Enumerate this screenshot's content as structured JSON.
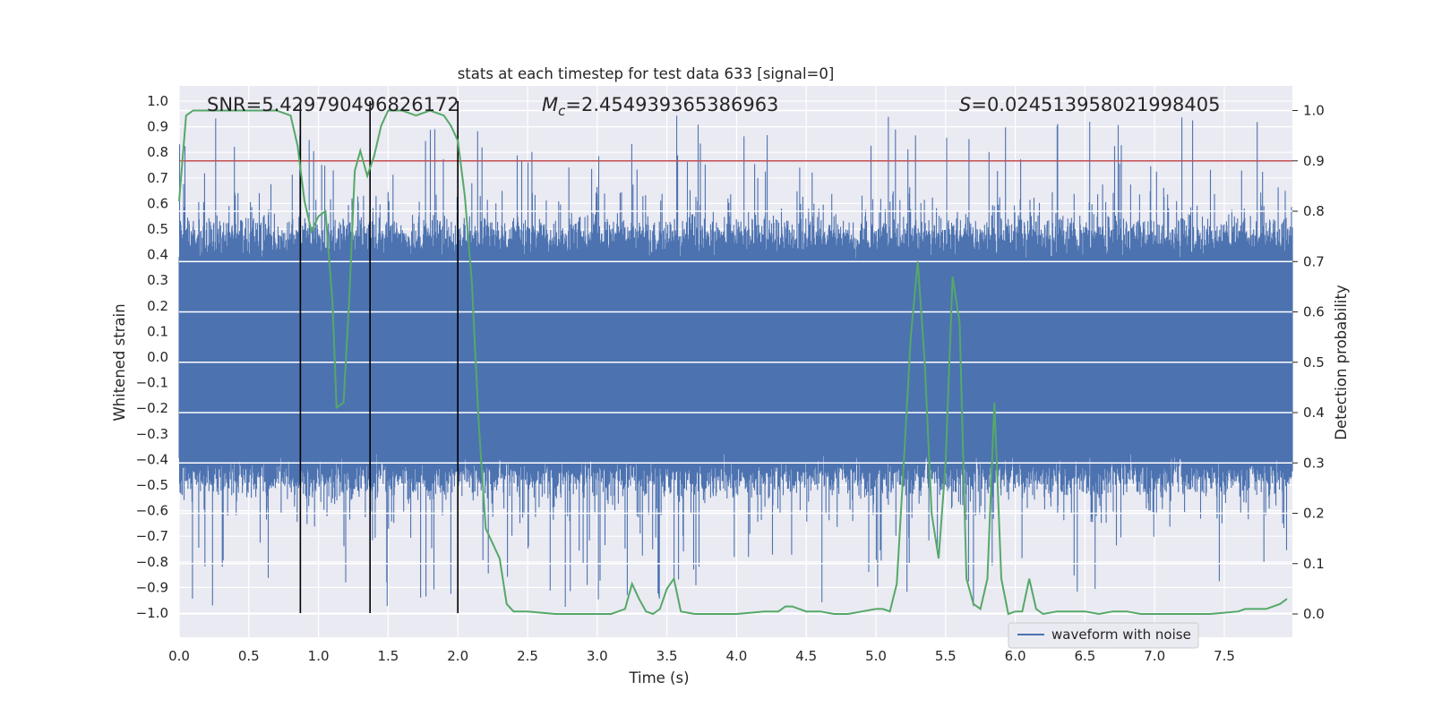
{
  "chart_data": {
    "type": "line",
    "title": "stats at each timestep for test data 633 [signal=0]",
    "xlabel": "Time (s)",
    "ylabel_left": "Whitened strain",
    "ylabel_right": "Detection probability",
    "xlim": [
      0.0,
      8.0
    ],
    "ylim_left": [
      -1.1,
      1.05
    ],
    "ylim_right": [
      -0.05,
      1.03
    ],
    "x_ticks": [
      "0.0",
      "0.5",
      "1.0",
      "1.5",
      "2.0",
      "2.5",
      "3.0",
      "3.5",
      "4.0",
      "4.5",
      "5.0",
      "5.5",
      "6.0",
      "6.5",
      "7.0",
      "7.5"
    ],
    "y_ticks_left": [
      "1.0",
      "0.9",
      "0.8",
      "0.7",
      "0.6",
      "0.5",
      "0.4",
      "0.3",
      "0.2",
      "0.1",
      "0.0",
      "−0.1",
      "−0.2",
      "−0.3",
      "−0.4",
      "−0.5",
      "−0.6",
      "−0.7",
      "−0.8",
      "−0.9",
      "−1.0"
    ],
    "y_ticks_right": [
      "1.0",
      "0.9",
      "0.8",
      "0.7",
      "0.6",
      "0.5",
      "0.4",
      "0.3",
      "0.2",
      "0.1",
      "0.0"
    ],
    "grid": true,
    "annotations": {
      "snr": "SNR=5.429790496826172",
      "mc_symbol": "M",
      "mc_sub": "c",
      "mc_value": "=2.454939365386963",
      "s_symbol": "S",
      "s_value": "=0.024513958021998405"
    },
    "threshold": {
      "value": 0.9,
      "axis": "right",
      "color": "#c44e52"
    },
    "vertical_lines": {
      "x": [
        0.87,
        1.37,
        2.0
      ],
      "y_range_left": [
        -1.0,
        1.0
      ],
      "color": "#000000"
    },
    "legend": {
      "location": "lower-right",
      "entries": [
        "waveform with noise"
      ]
    },
    "series": [
      {
        "name": "waveform with noise",
        "axis": "left",
        "color": "#4c72b0",
        "description": "dense noisy strain, roughly uniform amplitude"
      },
      {
        "name": "detection probability",
        "axis": "right",
        "color": "#55a868",
        "x": [
          0.0,
          0.05,
          0.1,
          0.2,
          0.3,
          0.5,
          0.7,
          0.8,
          0.85,
          0.9,
          0.95,
          1.0,
          1.05,
          1.1,
          1.13,
          1.18,
          1.22,
          1.26,
          1.3,
          1.35,
          1.4,
          1.45,
          1.5,
          1.6,
          1.7,
          1.8,
          1.9,
          1.95,
          2.0,
          2.05,
          2.1,
          2.15,
          2.2,
          2.3,
          2.35,
          2.4,
          2.5,
          2.7,
          2.9,
          3.1,
          3.2,
          3.25,
          3.3,
          3.35,
          3.4,
          3.45,
          3.5,
          3.55,
          3.6,
          3.7,
          3.8,
          3.9,
          4.0,
          4.2,
          4.3,
          4.35,
          4.4,
          4.5,
          4.6,
          4.7,
          4.8,
          4.9,
          5.0,
          5.05,
          5.1,
          5.15,
          5.2,
          5.25,
          5.3,
          5.35,
          5.4,
          5.45,
          5.5,
          5.55,
          5.6,
          5.65,
          5.7,
          5.75,
          5.8,
          5.85,
          5.9,
          5.95,
          6.0,
          6.05,
          6.1,
          6.15,
          6.2,
          6.3,
          6.4,
          6.5,
          6.6,
          6.7,
          6.8,
          6.9,
          7.0,
          7.2,
          7.4,
          7.6,
          7.65,
          7.7,
          7.8,
          7.9,
          7.95
        ],
        "values": [
          0.82,
          0.99,
          1.0,
          1.0,
          1.0,
          1.0,
          1.0,
          0.99,
          0.93,
          0.82,
          0.76,
          0.79,
          0.8,
          0.62,
          0.41,
          0.42,
          0.62,
          0.88,
          0.92,
          0.87,
          0.91,
          0.97,
          1.0,
          1.0,
          0.99,
          1.0,
          0.99,
          0.97,
          0.94,
          0.83,
          0.66,
          0.38,
          0.17,
          0.11,
          0.02,
          0.005,
          0.005,
          0.0,
          0.0,
          0.0,
          0.01,
          0.06,
          0.03,
          0.005,
          0.0,
          0.01,
          0.05,
          0.07,
          0.005,
          0.0,
          0.0,
          0.0,
          0.0,
          0.005,
          0.005,
          0.015,
          0.015,
          0.005,
          0.005,
          0.0,
          0.0,
          0.005,
          0.01,
          0.01,
          0.005,
          0.06,
          0.3,
          0.55,
          0.7,
          0.5,
          0.2,
          0.11,
          0.3,
          0.67,
          0.58,
          0.07,
          0.02,
          0.01,
          0.07,
          0.42,
          0.07,
          0.0,
          0.005,
          0.005,
          0.07,
          0.01,
          0.0,
          0.005,
          0.005,
          0.005,
          0.0,
          0.005,
          0.005,
          0.0,
          0.0,
          0.0,
          0.0,
          0.005,
          0.01,
          0.01,
          0.01,
          0.02,
          0.03
        ]
      }
    ]
  }
}
